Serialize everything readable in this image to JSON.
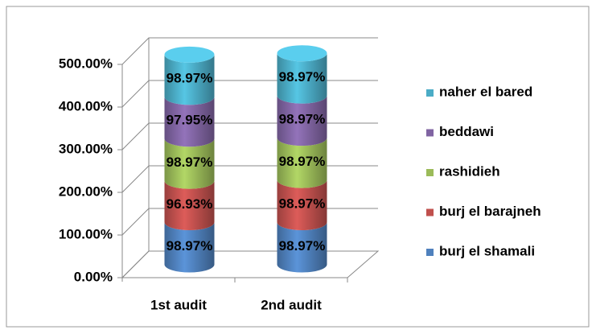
{
  "chart_data": {
    "type": "bar3d-cylinder-stacked",
    "categories": [
      "1st audit",
      "2nd audit"
    ],
    "series": [
      {
        "name": "burj el shamali",
        "color": "#4f81bd",
        "values": [
          98.97,
          98.97
        ],
        "value_labels": [
          "98.97%",
          "98.97%"
        ]
      },
      {
        "name": "burj el barajneh",
        "color": "#c0504d",
        "values": [
          96.93,
          98.97
        ],
        "value_labels": [
          "96.93%",
          "98.97%"
        ]
      },
      {
        "name": "rashidieh",
        "color": "#9bbb59",
        "values": [
          98.97,
          98.97
        ],
        "value_labels": [
          "98.97%",
          "98.97%"
        ]
      },
      {
        "name": "beddawi",
        "color": "#8064a2",
        "values": [
          97.95,
          98.97
        ],
        "value_labels": [
          "97.95%",
          "98.97%"
        ]
      },
      {
        "name": "naher el bared",
        "color": "#4bacc6",
        "values": [
          98.97,
          98.97
        ],
        "value_labels": [
          "98.97%",
          "98.97%"
        ]
      }
    ],
    "ylim": [
      0,
      500
    ],
    "yticks": [
      {
        "value": 0,
        "label": "0.00%"
      },
      {
        "value": 100,
        "label": "100.00%"
      },
      {
        "value": 200,
        "label": "200.00%"
      },
      {
        "value": 300,
        "label": "300.00%"
      },
      {
        "value": 400,
        "label": "400.00%"
      },
      {
        "value": 500,
        "label": "500.00%"
      }
    ],
    "grid": true,
    "legend": "right"
  }
}
